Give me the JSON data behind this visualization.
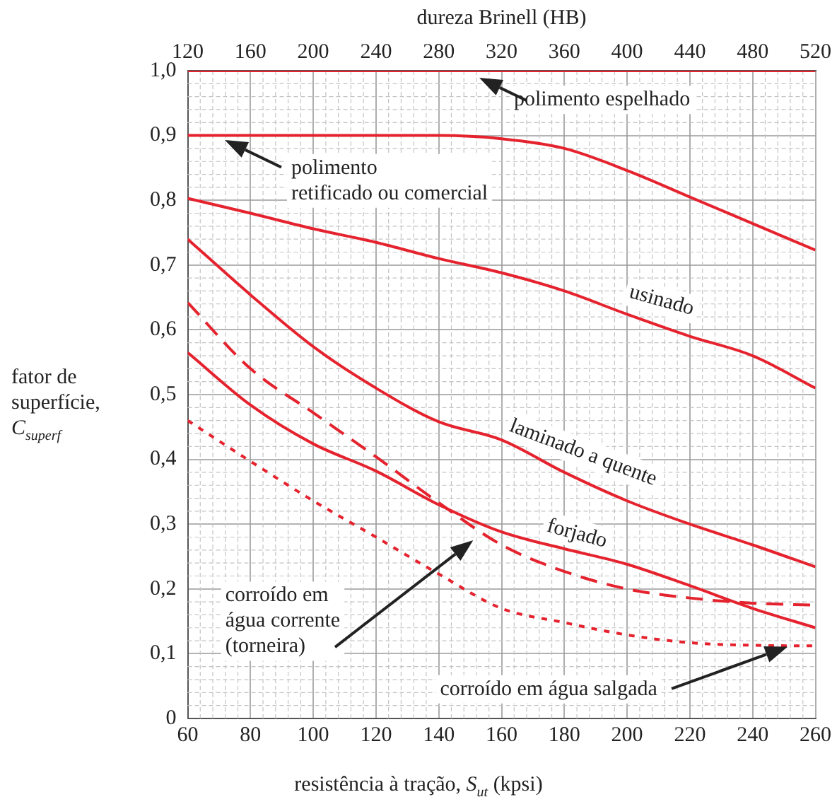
{
  "chart_data": {
    "type": "line",
    "xlabel": "resistência à tração, S$_{ut}$ (kpsi)",
    "ylabel": "fator de superfície, C$_{superf}$",
    "x2label": "dureza Brinell (HB)",
    "x": [
      60,
      80,
      100,
      120,
      140,
      160,
      180,
      200,
      220,
      240,
      260
    ],
    "xlim": [
      60,
      260
    ],
    "xticks": [
      60,
      80,
      100,
      120,
      140,
      160,
      180,
      200,
      220,
      240,
      260
    ],
    "x2lim": [
      120,
      520
    ],
    "x2ticks": [
      120,
      160,
      200,
      240,
      280,
      320,
      360,
      400,
      440,
      480,
      520
    ],
    "ylim": [
      0,
      1
    ],
    "yticks": [
      {
        "value": 0,
        "label": "0"
      },
      {
        "value": 0.1,
        "label": "0,1"
      },
      {
        "value": 0.2,
        "label": "0,2"
      },
      {
        "value": 0.3,
        "label": "0,3"
      },
      {
        "value": 0.4,
        "label": "0,4"
      },
      {
        "value": 0.5,
        "label": "0,5"
      },
      {
        "value": 0.6,
        "label": "0,6"
      },
      {
        "value": 0.7,
        "label": "0,7"
      },
      {
        "value": 0.8,
        "label": "0,8"
      },
      {
        "value": 0.9,
        "label": "0,9"
      },
      {
        "value": 1,
        "label": "1,0"
      }
    ],
    "grid": true,
    "legend": false,
    "marker": "none",
    "series": [
      {
        "name": "polimento espelhado",
        "color": "#e5232e",
        "line_style": "solid",
        "values": [
          1,
          1,
          1,
          1,
          1,
          1,
          1,
          1,
          1,
          1,
          1
        ]
      },
      {
        "name": "polimento\nretificado ou comercial",
        "color": "#e5232e",
        "line_style": "solid",
        "values": [
          0.9,
          0.9,
          0.9,
          0.9,
          0.9,
          0.895,
          0.88,
          0.846,
          0.805,
          0.764,
          0.723
        ]
      },
      {
        "name": "usinado",
        "color": "#e5232e",
        "line_style": "solid",
        "values": [
          0.803,
          0.78,
          0.756,
          0.735,
          0.71,
          0.688,
          0.66,
          0.624,
          0.59,
          0.56,
          0.51
        ]
      },
      {
        "name": "laminado a quente",
        "color": "#e5232e",
        "line_style": "solid",
        "values": [
          0.74,
          0.654,
          0.574,
          0.51,
          0.458,
          0.43,
          0.38,
          0.336,
          0.3,
          0.268,
          0.234
        ]
      },
      {
        "name": "forjado",
        "color": "#e5232e",
        "line_style": "solid",
        "values": [
          0.565,
          0.484,
          0.424,
          0.382,
          0.33,
          0.288,
          0.262,
          0.238,
          0.205,
          0.17,
          0.14
        ]
      },
      {
        "name": "corroído em\nágua corrente\n(torneira)",
        "color": "#e5232e",
        "line_style": "dashed",
        "values": [
          0.642,
          0.54,
          0.472,
          0.404,
          0.333,
          0.268,
          0.227,
          0.2,
          0.186,
          0.178,
          0.175
        ]
      },
      {
        "name": "corroído em água salgada",
        "color": "#e5232e",
        "line_style": "dotted",
        "values": [
          0.46,
          0.397,
          0.336,
          0.28,
          0.223,
          0.17,
          0.148,
          0.129,
          0.117,
          0.113,
          0.112
        ]
      }
    ]
  }
}
